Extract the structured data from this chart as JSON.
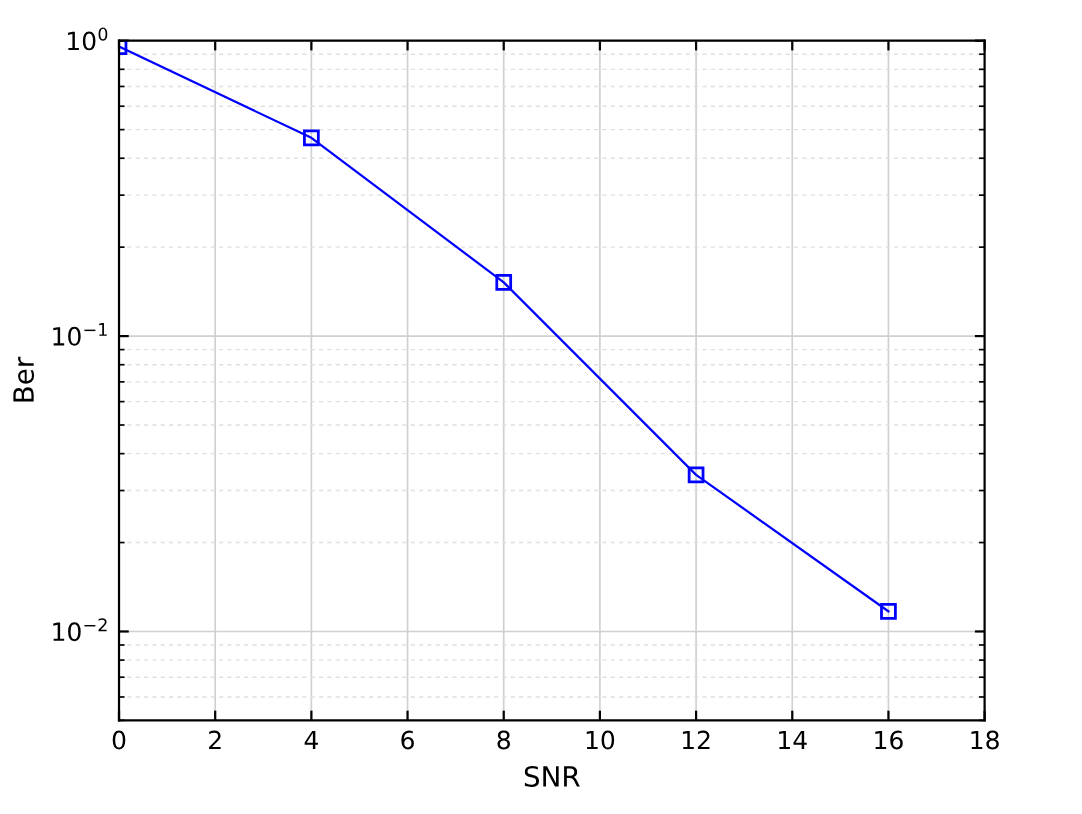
{
  "chart_data": {
    "type": "line",
    "xlabel": "SNR",
    "ylabel": "Ber",
    "log": "y",
    "x": [
      0,
      4,
      8,
      12,
      16
    ],
    "series": [
      {
        "color": "#0000ff",
        "values": [
          0.955,
          0.469,
          0.152,
          0.0339,
          0.0117
        ]
      }
    ],
    "xlim": [
      0,
      18
    ],
    "xticks": [
      0,
      2,
      4,
      6,
      8,
      10,
      12,
      14,
      16,
      18
    ],
    "ylim": [
      0.005,
      1
    ],
    "yticks": [
      {
        "value": 0.01,
        "label": "10$^{−2}$"
      },
      {
        "value": 0.1,
        "label": "10$^{−1}$"
      },
      {
        "value": 1,
        "label": "10$^{0}$"
      }
    ],
    "grid": true,
    "marker": "square",
    "line_style": "solid",
    "legend": false
  }
}
